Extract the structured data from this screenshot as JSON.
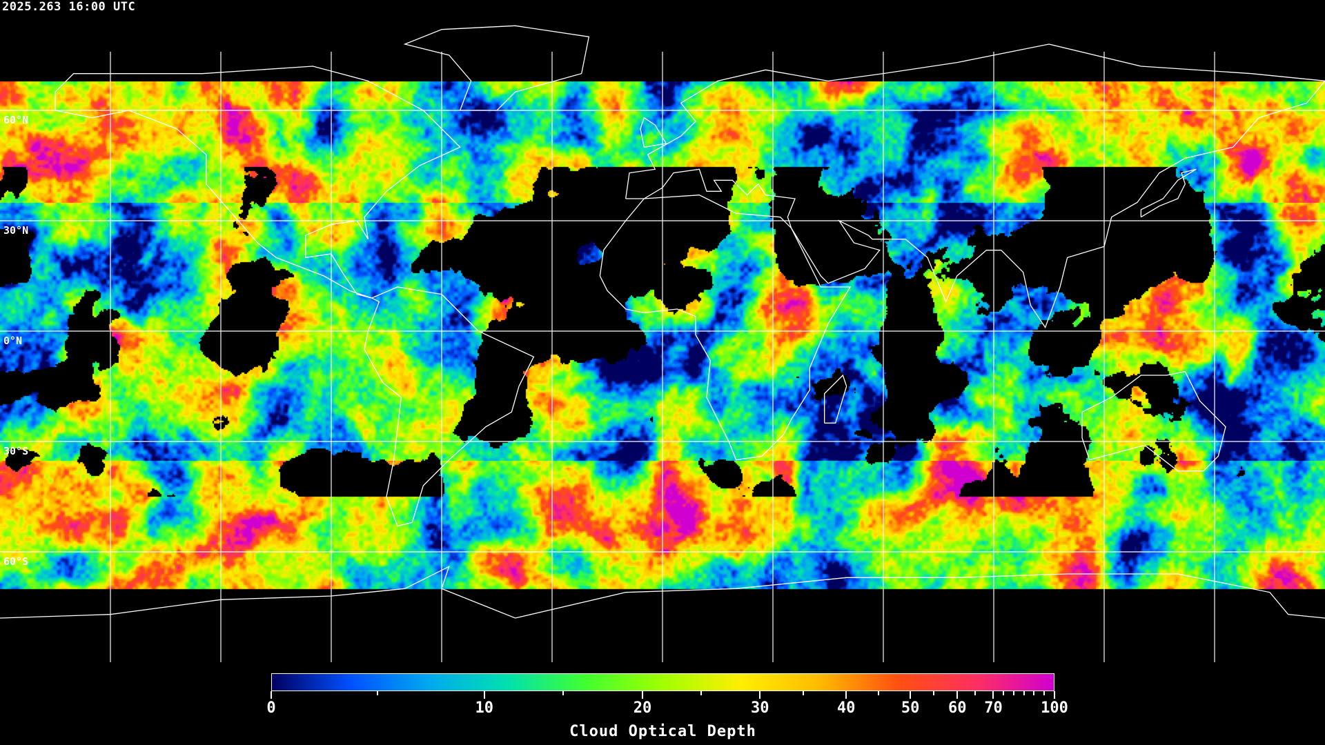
{
  "header": {
    "timestamp": "2025.263 16:00 UTC"
  },
  "map": {
    "projection": "equirectangular",
    "lon_range": [
      -180,
      180
    ],
    "lat_range": [
      -90,
      90
    ],
    "grid_spacing_deg": 30,
    "grid_color": "#ffffff",
    "coastline_color": "#ffffff",
    "no_data_color": "#000000",
    "lat_labels": [
      "60°N",
      "30°N",
      "0°N",
      "30°S",
      "60°S"
    ]
  },
  "colorbar": {
    "title": "Cloud Optical Depth",
    "range": [
      0,
      100
    ],
    "labels": [
      "0",
      "10",
      "20",
      "30",
      "40",
      "50",
      "60",
      "70",
      "100"
    ],
    "colors": [
      "#000060",
      "#0050ff",
      "#00a8f0",
      "#00e0b0",
      "#40ff30",
      "#a0ff00",
      "#ffee00",
      "#ffbb00",
      "#ff5010",
      "#ff3060",
      "#d000d0"
    ]
  }
}
